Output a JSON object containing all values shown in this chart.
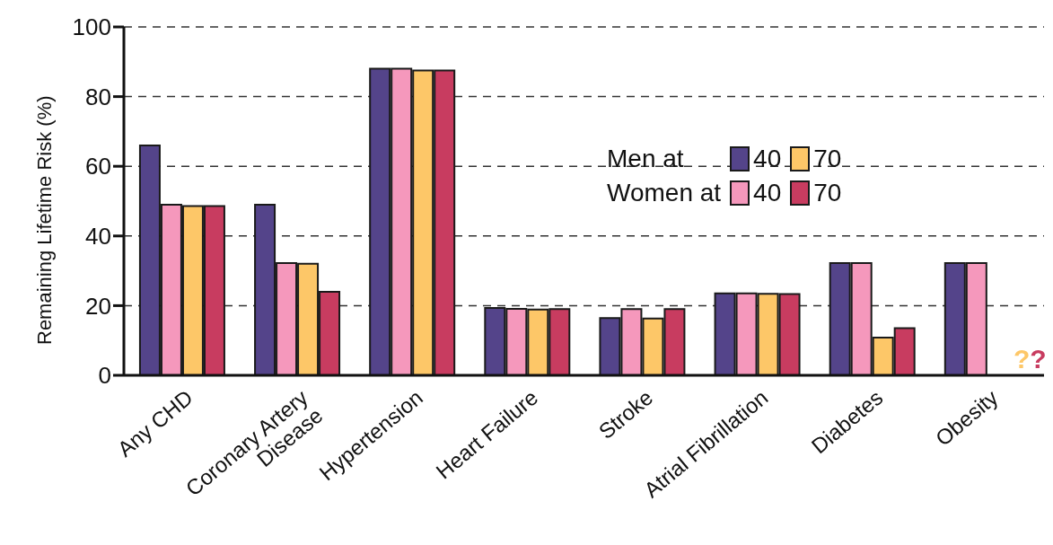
{
  "chart_data": {
    "type": "bar",
    "ylabel": "Remaining Lifetime Risk (%)",
    "categories": [
      "Any CHD",
      "Coronary Artery Disease",
      "Hypertension",
      "Heart Failure",
      "Stroke",
      "Atrial Fibrillation",
      "Diabetes",
      "Obesity"
    ],
    "series": [
      {
        "name": "40",
        "color": "#54448a",
        "values": [
          66,
          49,
          88,
          19.3,
          16.4,
          23.5,
          32.2,
          32.2
        ]
      },
      {
        "name": "40",
        "color": "#f598bc",
        "values": [
          49,
          32.2,
          88,
          19.1,
          19,
          23.5,
          32.2,
          32.2
        ]
      },
      {
        "name": "70",
        "color": "#fdc768",
        "values": [
          48.6,
          32,
          87.5,
          18.9,
          16.3,
          23.4,
          10.8,
          null
        ]
      },
      {
        "name": "70",
        "color": "#c83c60",
        "values": [
          48.6,
          24,
          87.5,
          19,
          19,
          23.3,
          13.5,
          null
        ]
      }
    ],
    "annotations": [
      "Men at",
      "Women at",
      "??"
    ],
    "ylim": [
      0,
      100
    ],
    "yticks": [
      0,
      20,
      40,
      60,
      80,
      100
    ],
    "grid": "y",
    "legend": "top right"
  }
}
